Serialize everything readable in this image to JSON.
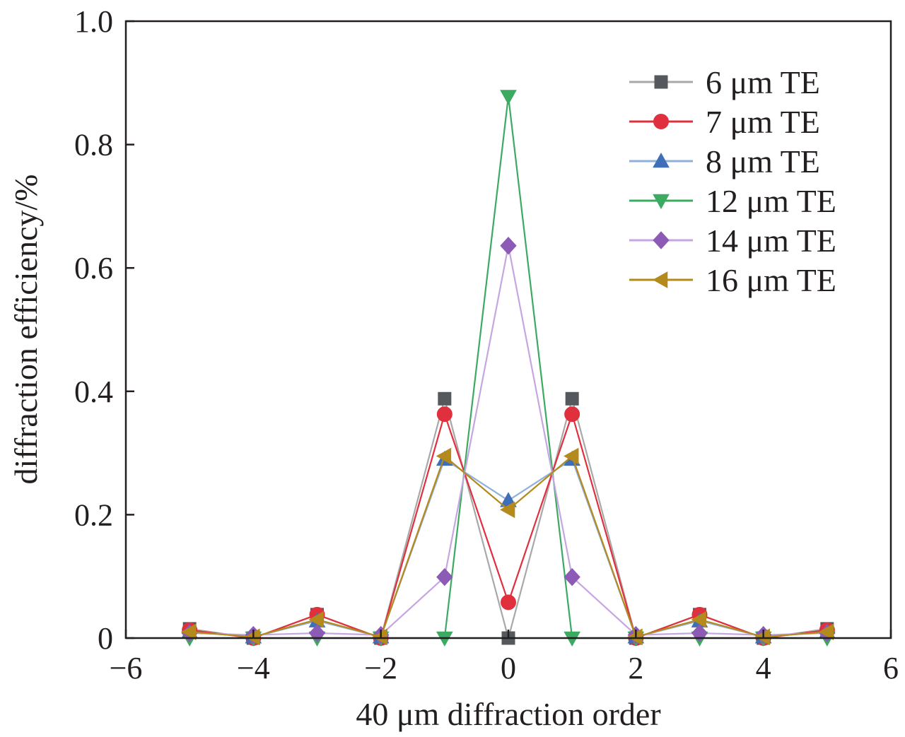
{
  "chart_data": {
    "type": "line",
    "title": "",
    "xlabel": "40 μm diffraction order",
    "ylabel": "diffraction efficiency/%",
    "xlim": [
      -6,
      6
    ],
    "ylim": [
      0,
      1.0
    ],
    "x_ticks": [
      -6,
      -4,
      -2,
      0,
      2,
      4,
      6
    ],
    "x_tick_labels": [
      "−6",
      "−4",
      "−2",
      "0",
      "2",
      "4",
      "6"
    ],
    "y_ticks": [
      0,
      0.2,
      0.4,
      0.6,
      0.8,
      1.0
    ],
    "y_tick_labels": [
      "0",
      "0.2",
      "0.4",
      "0.6",
      "0.8",
      "1.0"
    ],
    "grid": false,
    "legend_position": "top-right",
    "x": [
      -5,
      -4,
      -3,
      -2,
      -1,
      0,
      1,
      2,
      3,
      4,
      5
    ],
    "series": [
      {
        "name": "6 μm TE",
        "color": "#55585c",
        "line_color": "#a8a8a8",
        "marker": "square",
        "values": [
          0.015,
          0.0,
          0.038,
          0.0,
          0.388,
          0.0,
          0.388,
          0.0,
          0.038,
          0.0,
          0.015
        ]
      },
      {
        "name": "7 μm TE",
        "color": "#e0303e",
        "line_color": "#e0303e",
        "marker": "circle",
        "values": [
          0.013,
          0.0,
          0.038,
          0.0,
          0.363,
          0.058,
          0.363,
          0.0,
          0.038,
          0.0,
          0.013
        ]
      },
      {
        "name": "8 μm TE",
        "color": "#3f6fb8",
        "line_color": "#8fb0dd",
        "marker": "triangle-up",
        "values": [
          0.01,
          0.002,
          0.028,
          0.002,
          0.29,
          0.223,
          0.29,
          0.002,
          0.028,
          0.002,
          0.01
        ]
      },
      {
        "name": "12 μm TE",
        "color": "#3daa62",
        "line_color": "#3daa62",
        "marker": "triangle-down",
        "values": [
          0.0,
          0.0,
          0.0,
          0.0,
          0.0,
          0.878,
          0.0,
          0.0,
          0.0,
          0.0,
          0.0
        ]
      },
      {
        "name": "14 μm TE",
        "color": "#8b5bb5",
        "line_color": "#c6a6e2",
        "marker": "diamond",
        "values": [
          0.008,
          0.005,
          0.008,
          0.005,
          0.099,
          0.636,
          0.099,
          0.005,
          0.008,
          0.005,
          0.008
        ]
      },
      {
        "name": "16 μm TE",
        "color": "#b48a1c",
        "line_color": "#b48a1c",
        "marker": "triangle-left",
        "values": [
          0.01,
          0.002,
          0.03,
          0.002,
          0.295,
          0.208,
          0.295,
          0.002,
          0.03,
          0.002,
          0.01
        ]
      }
    ]
  }
}
